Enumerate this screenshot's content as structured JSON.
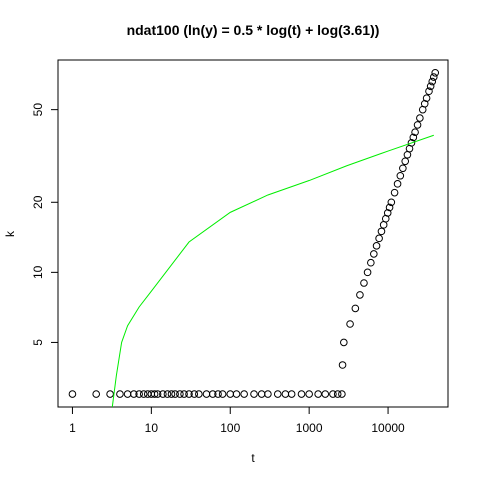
{
  "chart_data": {
    "type": "scatter",
    "title": "ndat100 (ln(y) = 0.5 * log(t) + log(3.61))",
    "x_label": "t",
    "y_label": "k",
    "xlog": true,
    "ylog": true,
    "xlim": [
      0.656,
      57500
    ],
    "ylim": [
      2.64,
      81.7
    ],
    "xticks": [
      1,
      10,
      100,
      1000,
      10000
    ],
    "yticks": [
      5,
      10,
      20,
      50
    ],
    "series": [
      {
        "color": "#000000",
        "marker": "open-circle",
        "x": [
          1,
          2,
          3,
          4,
          5,
          6,
          7,
          8,
          9,
          10,
          11,
          12,
          14,
          16,
          18,
          20,
          23,
          26,
          30,
          35,
          40,
          50,
          60,
          70,
          80,
          100,
          120,
          150,
          200,
          250,
          300,
          400,
          500,
          600,
          800,
          1000,
          1300,
          1600,
          2000,
          2300,
          2600,
          2650,
          2750,
          3300,
          3850,
          4400,
          4950,
          5500,
          6050,
          6600,
          7150,
          7700,
          8250,
          8800,
          9350,
          9900,
          10450,
          11000,
          12100,
          13200,
          14300,
          15400,
          16500,
          17600,
          18700,
          19800,
          20900,
          22000,
          23650,
          25300,
          27500,
          29150,
          30800,
          33000,
          34650,
          36300,
          37950,
          39600
        ],
        "values": [
          3,
          3,
          3,
          3,
          3,
          3,
          3,
          3,
          3,
          3,
          3,
          3,
          3,
          3,
          3,
          3,
          3,
          3,
          3,
          3,
          3,
          3,
          3,
          3,
          3,
          3,
          3,
          3,
          3,
          3,
          3,
          3,
          3,
          3,
          3,
          3,
          3,
          3,
          3,
          3,
          3,
          4,
          5,
          6,
          7,
          8,
          9,
          10,
          11,
          12,
          13,
          14,
          15,
          16,
          17,
          18,
          19,
          20,
          22,
          24,
          26,
          28,
          30,
          32,
          34,
          36,
          38,
          40,
          43,
          46,
          50,
          53,
          56,
          60,
          63,
          66,
          69,
          72
        ]
      },
      {
        "color": "#00ee00",
        "marker": "line",
        "x": [
          3.2,
          3.6,
          4.2,
          5,
          7,
          10,
          30,
          100,
          300,
          1000,
          3000,
          10000,
          38000
        ],
        "values": [
          2.64,
          3.6,
          5,
          5.9,
          7.1,
          8.3,
          13.5,
          18.1,
          21.5,
          24.8,
          28.7,
          33.2,
          38.8
        ]
      }
    ]
  }
}
